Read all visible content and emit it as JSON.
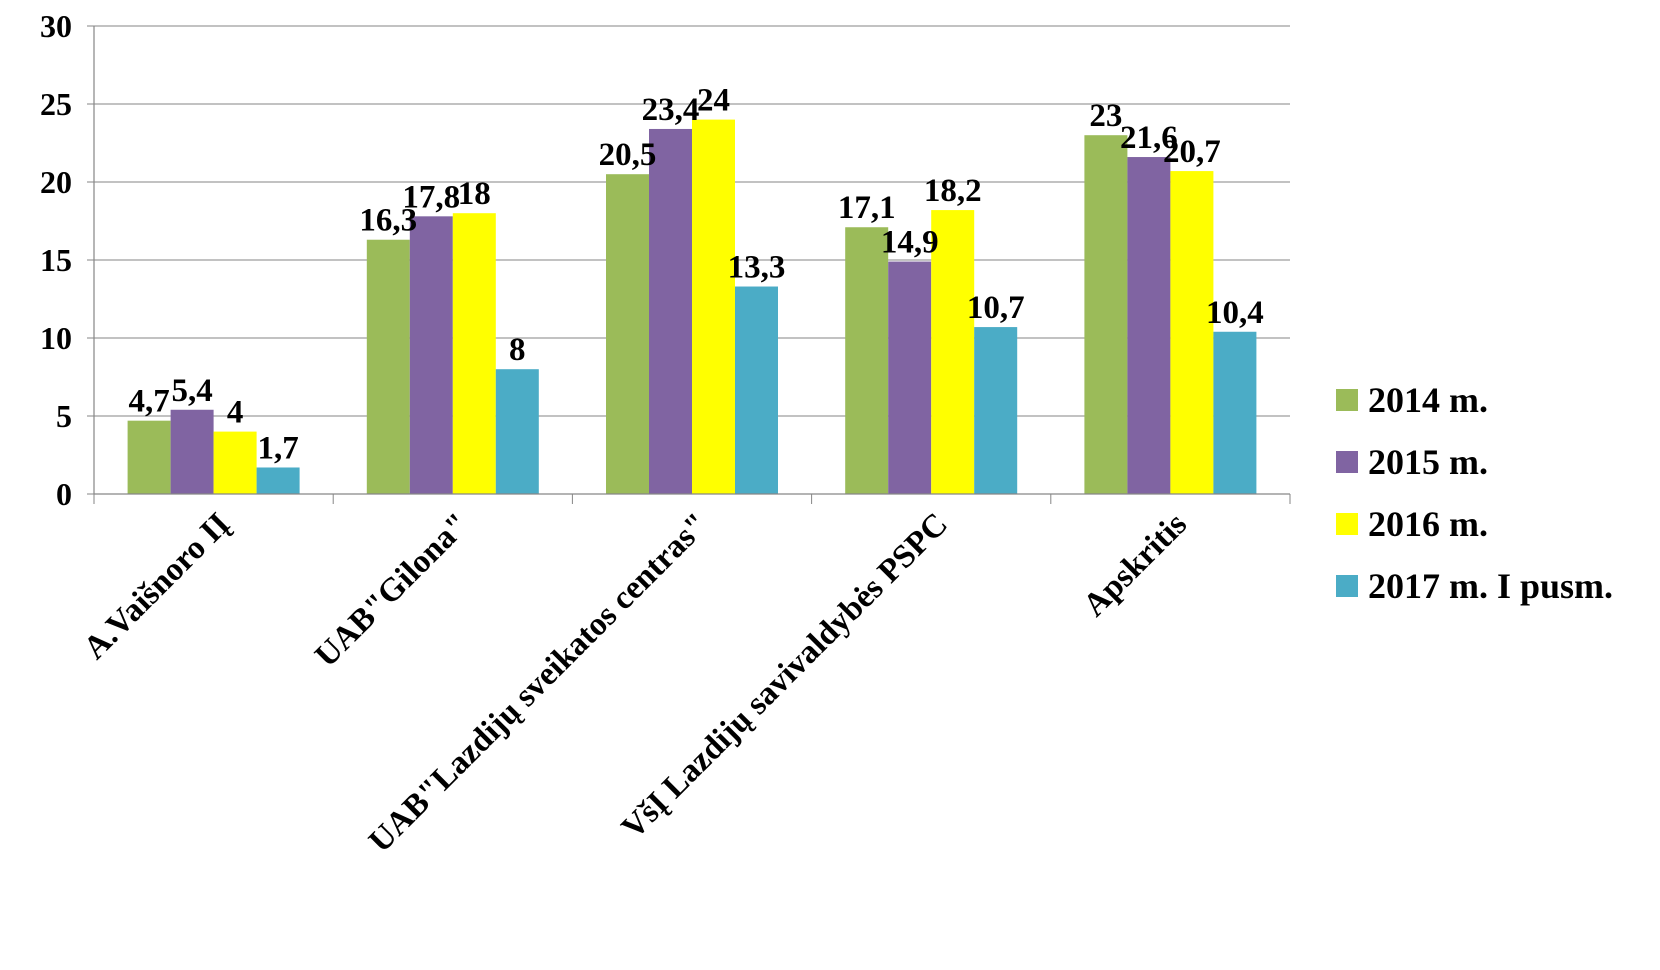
{
  "chart_data": {
    "type": "bar",
    "title": "",
    "xlabel": "",
    "ylabel": "",
    "ylim": [
      0,
      30
    ],
    "yticks": [
      "0",
      "5",
      "10",
      "15",
      "20",
      "25",
      "30"
    ],
    "grid": true,
    "legend": "right",
    "categories": [
      "A.Vaišnoro IĮ",
      "UAB\"Gilona\"",
      "UAB\"Lazdijų sveikatos centras\"",
      "VšĮ Lazdijų savivaldybės PSPC",
      "Apskritis"
    ],
    "series": [
      {
        "name": "2014 m.",
        "color": "#9BBB59",
        "values": [
          4.7,
          16.3,
          20.5,
          17.1,
          23
        ],
        "labels": [
          "4,7",
          "16,3",
          "20,5",
          "17,1",
          "23"
        ]
      },
      {
        "name": "2015 m.",
        "color": "#8064A2",
        "values": [
          5.4,
          17.8,
          23.4,
          14.9,
          21.6
        ],
        "labels": [
          "5,4",
          "17,8",
          "23,4",
          "14,9",
          "21,6"
        ]
      },
      {
        "name": "2016 m.",
        "color": "#FFFF00",
        "values": [
          4,
          18,
          24,
          18.2,
          20.7
        ],
        "labels": [
          "4",
          "18",
          "24",
          "18,2",
          "20,7"
        ]
      },
      {
        "name": "2017 m. I pusm.",
        "color": "#4BACC6",
        "values": [
          1.7,
          8,
          13.3,
          10.7,
          10.4
        ],
        "labels": [
          "1,7",
          "8",
          "13,3",
          "10,7",
          "10,4"
        ]
      }
    ]
  }
}
